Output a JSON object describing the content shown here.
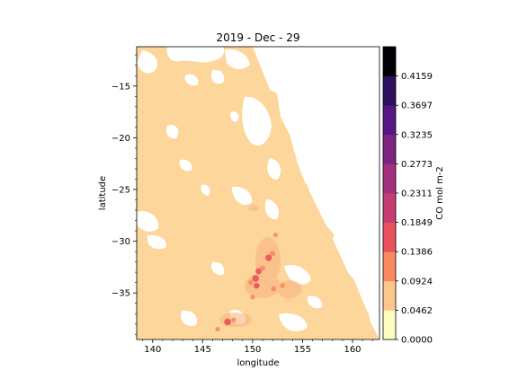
{
  "chart_data": {
    "type": "heatmap",
    "title": "2019 - Dec - 29",
    "xlabel": "longitude",
    "ylabel": "latitude",
    "xlim": [
      138.4,
      162.7
    ],
    "ylim": [
      -39.5,
      -11.2
    ],
    "x_ticks": [
      140,
      145,
      150,
      155,
      160
    ],
    "y_ticks": [
      -15,
      -20,
      -25,
      -30,
      -35
    ],
    "grid": false,
    "colorbar": {
      "label": "CO mol m-2",
      "ticks": [
        "0.0000",
        "0.0462",
        "0.0924",
        "0.1386",
        "0.1849",
        "0.2311",
        "0.2773",
        "0.3235",
        "0.3697",
        "0.4159"
      ],
      "colors": [
        "#fcfdbf",
        "#fdc68c",
        "#f9885f",
        "#e9515b",
        "#c63c74",
        "#a3307e",
        "#7d2482",
        "#561683",
        "#2b115e",
        "#000004"
      ]
    },
    "background_level_color": "#fcd69a",
    "hotspots": [
      {
        "lon": 151.6,
        "lat": -31.6,
        "value": 0.15
      },
      {
        "lon": 152.0,
        "lat": -31.2,
        "value": 0.12
      },
      {
        "lon": 150.6,
        "lat": -32.9,
        "value": 0.14
      },
      {
        "lon": 150.3,
        "lat": -33.6,
        "value": 0.16
      },
      {
        "lon": 150.4,
        "lat": -34.3,
        "value": 0.13
      },
      {
        "lon": 149.8,
        "lat": -34.0,
        "value": 0.1
      },
      {
        "lon": 151.0,
        "lat": -32.6,
        "value": 0.11
      },
      {
        "lon": 152.1,
        "lat": -34.6,
        "value": 0.11
      },
      {
        "lon": 153.0,
        "lat": -34.3,
        "value": 0.1
      },
      {
        "lon": 150.0,
        "lat": -35.4,
        "value": 0.1
      },
      {
        "lon": 147.5,
        "lat": -37.8,
        "value": 0.16
      },
      {
        "lon": 148.1,
        "lat": -37.6,
        "value": 0.1
      },
      {
        "lon": 152.3,
        "lat": -29.4,
        "value": 0.09
      },
      {
        "lon": 150.0,
        "lat": -26.5,
        "value": 0.08
      },
      {
        "lon": 146.5,
        "lat": -38.5,
        "value": 0.09
      },
      {
        "lon": 153.6,
        "lat": -35.6,
        "value": 0.07
      }
    ]
  }
}
